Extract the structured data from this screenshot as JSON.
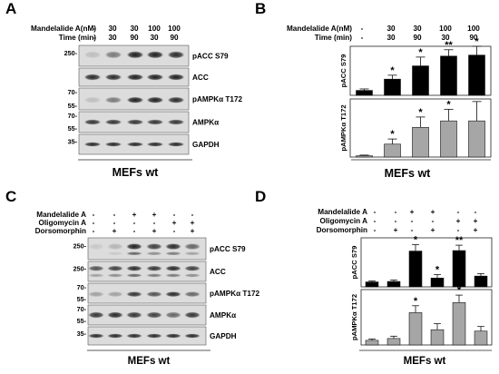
{
  "panels": {
    "A": {
      "letter": "A",
      "header": {
        "rows": [
          {
            "label": "Mandelalide A(nM)",
            "values": [
              "-",
              "30",
              "30",
              "100",
              "100"
            ]
          },
          {
            "label": "Time (min)",
            "values": [
              "-",
              "30",
              "90",
              "30",
              "90"
            ]
          }
        ]
      },
      "blots": [
        {
          "label": "pACC S79",
          "markers": [
            "250-"
          ]
        },
        {
          "label": "ACC",
          "markers": []
        },
        {
          "label": "pAMPKα  T172",
          "markers": [
            "70-",
            "55-"
          ]
        },
        {
          "label": "AMPKα",
          "markers": [
            "70-",
            "55-"
          ]
        },
        {
          "label": "GAPDH",
          "markers": [
            "35-"
          ]
        }
      ],
      "footer": "MEFs wt"
    },
    "B": {
      "letter": "B",
      "header": {
        "rows": [
          {
            "label": "Mandelalide A(nM)",
            "values": [
              "-",
              "30",
              "30",
              "100",
              "100"
            ]
          },
          {
            "label": "Time (min)",
            "values": [
              "-",
              "30",
              "90",
              "30",
              "90"
            ]
          }
        ]
      },
      "footer": "MEFs wt"
    },
    "C": {
      "letter": "C",
      "header": {
        "rows": [
          {
            "label": "Mandelalide A",
            "values": [
              "-",
              "-",
              "+",
              "+",
              "-",
              "-"
            ]
          },
          {
            "label": "Oligomycin A",
            "values": [
              "-",
              "-",
              "-",
              "-",
              "+",
              "+"
            ]
          },
          {
            "label": "Dorsomorphin",
            "values": [
              "-",
              "+",
              "-",
              "+",
              "-",
              "+"
            ]
          }
        ]
      },
      "blots": [
        {
          "label": "pACC S79",
          "markers": [
            "250-"
          ]
        },
        {
          "label": "ACC",
          "markers": [
            "250-"
          ]
        },
        {
          "label": "pAMPKα  T172",
          "markers": [
            "70-",
            "55-"
          ]
        },
        {
          "label": "AMPKα",
          "markers": [
            "70-",
            "55-"
          ]
        },
        {
          "label": "GAPDH",
          "markers": [
            "35-"
          ]
        }
      ],
      "footer": "MEFs wt"
    },
    "D": {
      "letter": "D",
      "header": {
        "rows": [
          {
            "label": "Mandelalide A",
            "values": [
              "-",
              "-",
              "+",
              "+",
              "-",
              "-"
            ]
          },
          {
            "label": "Oligomycin A",
            "values": [
              "-",
              "-",
              "-",
              "-",
              "+",
              "+"
            ]
          },
          {
            "label": "Dorsomorphin",
            "values": [
              "-",
              "+",
              "-",
              "+",
              "-",
              "+"
            ]
          }
        ]
      },
      "footer": "MEFs wt"
    }
  },
  "chart_data": [
    {
      "id": "B-top",
      "type": "bar",
      "ylabel": "pACC S79",
      "ylim": [
        0,
        10
      ],
      "color": "#000000",
      "values": [
        1.0,
        3.3,
        6.0,
        8.0,
        8.2
      ],
      "errors": [
        0.3,
        0.8,
        1.8,
        1.3,
        1.8
      ],
      "significance": [
        "",
        "*",
        "*",
        "**",
        "*"
      ]
    },
    {
      "id": "B-bottom",
      "type": "bar",
      "ylabel": "pAMPKα T172",
      "ylim": [
        0,
        45
      ],
      "color": "#a6a6a6",
      "values": [
        1.0,
        10.0,
        23.0,
        28.0,
        28.0
      ],
      "errors": [
        0.5,
        4.0,
        8.0,
        9.0,
        15.0
      ],
      "significance": [
        "",
        "*",
        "*",
        "*",
        ""
      ]
    },
    {
      "id": "D-top",
      "type": "bar",
      "ylabel": "pACC S79",
      "ylim": [
        0,
        10
      ],
      "color": "#000000",
      "values": [
        1.0,
        1.1,
        7.3,
        1.8,
        7.4,
        2.2
      ],
      "errors": [
        0.2,
        0.3,
        1.3,
        0.7,
        1.1,
        0.5
      ],
      "significance": [
        "",
        "",
        "*",
        "*",
        "**",
        ""
      ]
    },
    {
      "id": "D-bottom",
      "type": "bar",
      "ylabel": "pAMPKα T172",
      "ylim": [
        0,
        12
      ],
      "color": "#a6a6a6",
      "values": [
        1.0,
        1.4,
        7.0,
        3.3,
        9.2,
        3.0
      ],
      "errors": [
        0.3,
        0.5,
        1.5,
        1.3,
        1.6,
        1.0
      ],
      "significance": [
        "",
        "",
        "*",
        "",
        "*",
        ""
      ]
    }
  ]
}
